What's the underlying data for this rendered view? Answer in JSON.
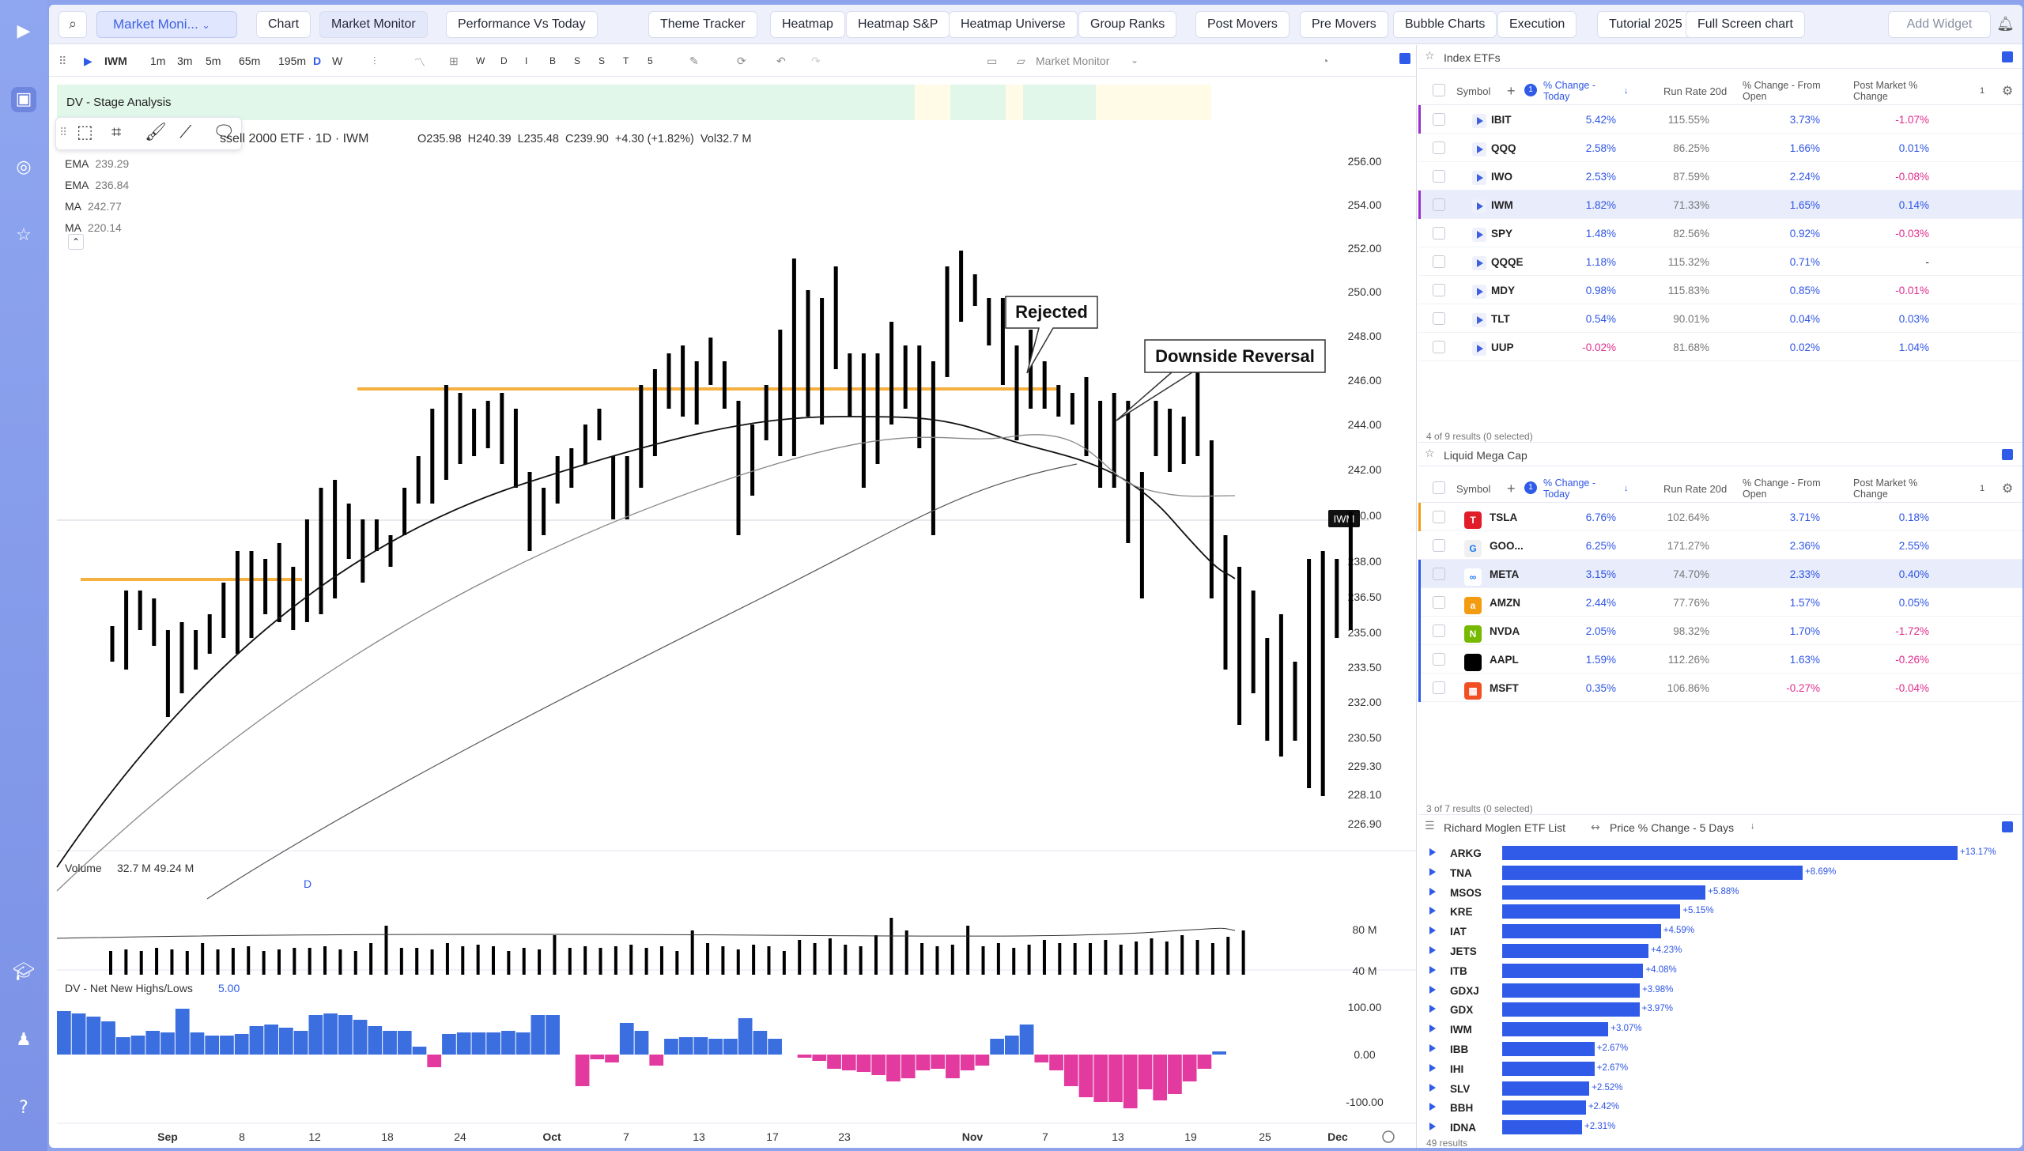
{
  "rail": {
    "items": [
      "logo",
      "dashboard",
      "feed",
      "watchlist",
      "learn",
      "account",
      "help"
    ]
  },
  "tabs": {
    "selector": "Market Moni...",
    "items": [
      "Chart",
      "Market Monitor",
      "Performance Vs Today",
      "Theme Tracker",
      "Heatmap",
      "Heatmap S&P",
      "Heatmap Universe",
      "Group Ranks",
      "Post Movers",
      "Pre Movers",
      "Bubble Charts",
      "Execution",
      "Tutorial 2025",
      "Full Screen chart"
    ],
    "add_widget": "Add Widget"
  },
  "chart": {
    "symbol": "IWM",
    "intervals": [
      "1m",
      "3m",
      "5m",
      "65m",
      "195m",
      "D",
      "W"
    ],
    "weekdays": [
      "W",
      "D",
      "I",
      "B",
      "S",
      "S",
      "T",
      "5"
    ],
    "layout_name": "Market Monitor",
    "stage_label": "DV - Stage Analysis",
    "title": "ssell 2000 ETF · 1D · IWM",
    "ohlc": "O235.98  H240.39  L235.48  C239.90  +4.30 (+1.82%)  Vol32.7 M",
    "indicators": [
      {
        "name": "EMA",
        "value": "239.29"
      },
      {
        "name": "EMA",
        "value": "236.84"
      },
      {
        "name": "MA",
        "value": "242.77"
      },
      {
        "name": "MA",
        "value": "220.14"
      }
    ],
    "price_ticks": [
      "256.00",
      "254.00",
      "252.00",
      "250.00",
      "248.00",
      "246.00",
      "244.00",
      "242.00",
      "240.00",
      "238.00",
      "236.50",
      "235.00",
      "233.50",
      "232.00",
      "230.50",
      "229.30",
      "228.10",
      "226.90"
    ],
    "last_tag": "IWM",
    "annotations": [
      "Rejected",
      "Downside Reversal"
    ],
    "d_marker": "D",
    "volume_label": "Volume",
    "volume_values": "32.7 M  49.24 M",
    "volume_ticks": [
      "80 M",
      "40 M"
    ],
    "nnhl_label": "DV - Net New Highs/Lows",
    "nnhl_value": "5.00",
    "nnhl_ticks": [
      "100.00",
      "0.00",
      "-100.00"
    ],
    "x_labels": [
      "Sep",
      "8",
      "12",
      "18",
      "24",
      "Oct",
      "7",
      "13",
      "17",
      "23",
      "Nov",
      "7",
      "13",
      "19",
      "25",
      "Dec"
    ]
  },
  "index_etfs": {
    "title": "Index ETFs",
    "headers": {
      "symbol": "Symbol",
      "chg": "% Change - Today",
      "run": "Run Rate 20d",
      "open": "% Change - From Open",
      "post": "Post Market % Change",
      "count": "1"
    },
    "rows": [
      {
        "sym": "IBIT",
        "chg": "5.42%",
        "run": "115.55%",
        "open": "3.73%",
        "post": "-1.07%"
      },
      {
        "sym": "QQQ",
        "chg": "2.58%",
        "run": "86.25%",
        "open": "1.66%",
        "post": "0.01%"
      },
      {
        "sym": "IWO",
        "chg": "2.53%",
        "run": "87.59%",
        "open": "2.24%",
        "post": "-0.08%"
      },
      {
        "sym": "IWM",
        "chg": "1.82%",
        "run": "71.33%",
        "open": "1.65%",
        "post": "0.14%"
      },
      {
        "sym": "SPY",
        "chg": "1.48%",
        "run": "82.56%",
        "open": "0.92%",
        "post": "-0.03%"
      },
      {
        "sym": "QQQE",
        "chg": "1.18%",
        "run": "115.32%",
        "open": "0.71%",
        "post": "-"
      },
      {
        "sym": "MDY",
        "chg": "0.98%",
        "run": "115.83%",
        "open": "0.85%",
        "post": "-0.01%"
      },
      {
        "sym": "TLT",
        "chg": "0.54%",
        "run": "90.01%",
        "open": "0.04%",
        "post": "0.03%"
      },
      {
        "sym": "UUP",
        "chg": "-0.02%",
        "run": "81.68%",
        "open": "0.02%",
        "post": "1.04%"
      }
    ],
    "footer": "4 of 9 results (0 selected)"
  },
  "mega_cap": {
    "title": "Liquid Mega Cap",
    "headers": {
      "symbol": "Symbol",
      "chg": "% Change - Today",
      "run": "Run Rate 20d",
      "open": "% Change - From Open",
      "post": "Post Market % Change",
      "count": "1"
    },
    "rows": [
      {
        "sym": "TSLA",
        "chg": "6.76%",
        "run": "102.64%",
        "open": "3.71%",
        "post": "0.18%",
        "logo": "T",
        "color": "#e11d2a"
      },
      {
        "sym": "GOO...",
        "chg": "6.25%",
        "run": "171.27%",
        "open": "2.36%",
        "post": "2.55%",
        "logo": "G",
        "color": "#f0f0f0"
      },
      {
        "sym": "META",
        "chg": "3.15%",
        "run": "74.70%",
        "open": "2.33%",
        "post": "0.40%",
        "logo": "∞",
        "color": "#ffffff"
      },
      {
        "sym": "AMZN",
        "chg": "2.44%",
        "run": "77.76%",
        "open": "1.57%",
        "post": "0.05%",
        "logo": "a",
        "color": "#f39c12"
      },
      {
        "sym": "NVDA",
        "chg": "2.05%",
        "run": "98.32%",
        "open": "1.70%",
        "post": "-1.72%",
        "logo": "N",
        "color": "#76b900"
      },
      {
        "sym": "AAPL",
        "chg": "1.59%",
        "run": "112.26%",
        "open": "1.63%",
        "post": "-0.26%",
        "logo": "",
        "color": "#000000"
      },
      {
        "sym": "MSFT",
        "chg": "0.35%",
        "run": "106.86%",
        "open": "-0.27%",
        "post": "-0.04%",
        "logo": "▦",
        "color": "#f25022"
      }
    ],
    "footer": "3 of 7 results (0 selected)"
  },
  "etf_list": {
    "title": "Richard Moglen ETF List",
    "metric": "Price % Change - 5 Days",
    "items": [
      {
        "sym": "ARKG",
        "value": 13.17,
        "label": "+13.17%"
      },
      {
        "sym": "TNA",
        "value": 8.69,
        "label": "+8.69%"
      },
      {
        "sym": "MSOS",
        "value": 5.88,
        "label": "+5.88%"
      },
      {
        "sym": "KRE",
        "value": 5.15,
        "label": "+5.15%"
      },
      {
        "sym": "IAT",
        "value": 4.59,
        "label": "+4.59%"
      },
      {
        "sym": "JETS",
        "value": 4.23,
        "label": "+4.23%"
      },
      {
        "sym": "ITB",
        "value": 4.08,
        "label": "+4.08%"
      },
      {
        "sym": "GDXJ",
        "value": 3.98,
        "label": "+3.98%"
      },
      {
        "sym": "GDX",
        "value": 3.97,
        "label": "+3.97%"
      },
      {
        "sym": "IWM",
        "value": 3.07,
        "label": "+3.07%"
      },
      {
        "sym": "IBB",
        "value": 2.67,
        "label": "+2.67%"
      },
      {
        "sym": "IHI",
        "value": 2.67,
        "label": "+2.67%"
      },
      {
        "sym": "SLV",
        "value": 2.52,
        "label": "+2.52%"
      },
      {
        "sym": "BBH",
        "value": 2.42,
        "label": "+2.42%"
      },
      {
        "sym": "IDNA",
        "value": 2.31,
        "label": "+2.31%"
      }
    ],
    "footer": "49 results"
  },
  "colors": {
    "accent": "#2f5be8",
    "positive": "#2f55e4",
    "negative": "#e02c8c",
    "stage_green": "#e4f7ec",
    "stage_yellow": "#fffbe6",
    "hline": "#f5b041"
  }
}
